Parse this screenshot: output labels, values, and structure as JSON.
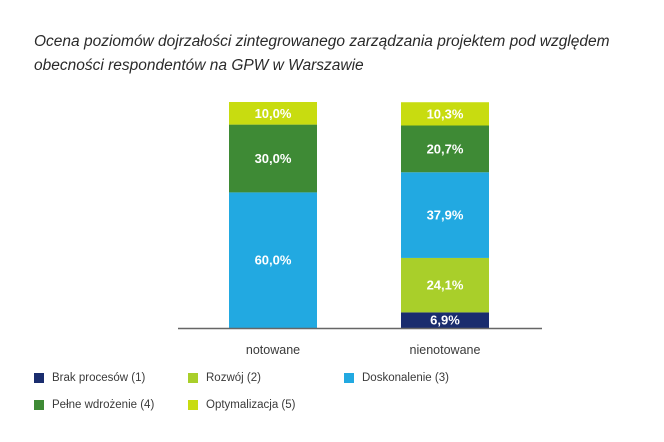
{
  "title_line1": "Ocena poziomów dojrzałości zintegrowanego zarządzania projektem pod względem",
  "title_line2": "obecności respondentów na GPW w Warszawie",
  "colors": {
    "brak": "#1a2d6e",
    "rozwoj": "#a9cf2a",
    "doskonalenie": "#22a9e1",
    "pelne": "#3e8a35",
    "optymalizacja": "#c8dc10",
    "axis": "#666666"
  },
  "chart_data": {
    "type": "bar",
    "stacked": true,
    "ylim": [
      0,
      100
    ],
    "categories": [
      "notowane",
      "nienotowane"
    ],
    "series": [
      {
        "name": "Brak procesów (1)",
        "key": "brak",
        "values": [
          0,
          6.9
        ],
        "labels": [
          "",
          "6,9%"
        ]
      },
      {
        "name": "Rozwój (2)",
        "key": "rozwoj",
        "values": [
          0,
          24.1
        ],
        "labels": [
          "",
          "24,1%"
        ]
      },
      {
        "name": "Doskonalenie (3)",
        "key": "doskonalenie",
        "values": [
          60.0,
          37.9
        ],
        "labels": [
          "60,0%",
          "37,9%"
        ]
      },
      {
        "name": "Pełne wdrożenie (4)",
        "key": "pelne",
        "values": [
          30.0,
          20.7
        ],
        "labels": [
          "30,0%",
          "20,7%"
        ]
      },
      {
        "name": "Optymalizacja (5)",
        "key": "optymalizacja",
        "values": [
          10.0,
          10.3
        ],
        "labels": [
          "10,0%",
          "10,3%"
        ]
      }
    ]
  }
}
